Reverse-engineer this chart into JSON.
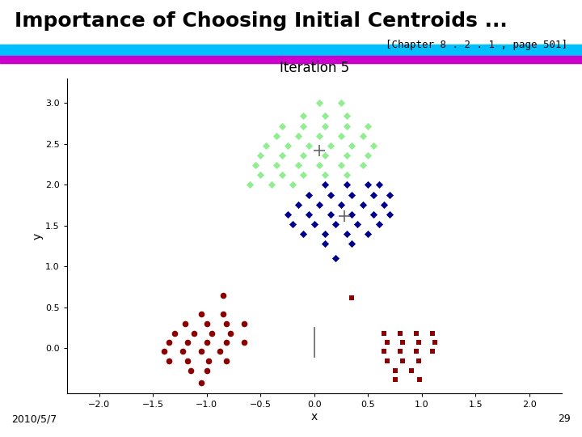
{
  "title_main": "Importance of Choosing Initial Centroids ...",
  "title_ref": "[Chapter 8 . 2 . 1 , page 501]",
  "subtitle": "Iteration 5",
  "date": "2010/5/7",
  "page_num": "29",
  "xlabel": "x",
  "ylabel": "y",
  "xlim": [
    -2.3,
    2.3
  ],
  "ylim": [
    -0.55,
    3.3
  ],
  "xticks": [
    -2,
    -1.5,
    -1,
    -0.5,
    0,
    0.5,
    1,
    1.5,
    2
  ],
  "yticks": [
    0,
    0.5,
    1,
    1.5,
    2,
    2.5,
    3
  ],
  "header_bar1_color": "#00BFFF",
  "header_bar2_color": "#CC00CC",
  "green_cluster": {
    "color": "#90EE90",
    "marker": "D",
    "size": 22,
    "points": [
      [
        0.05,
        3.0
      ],
      [
        0.25,
        3.0
      ],
      [
        -0.1,
        2.85
      ],
      [
        0.1,
        2.85
      ],
      [
        0.3,
        2.85
      ],
      [
        -0.3,
        2.72
      ],
      [
        -0.1,
        2.72
      ],
      [
        0.1,
        2.72
      ],
      [
        0.3,
        2.72
      ],
      [
        0.5,
        2.72
      ],
      [
        -0.35,
        2.6
      ],
      [
        -0.15,
        2.6
      ],
      [
        0.05,
        2.6
      ],
      [
        0.25,
        2.6
      ],
      [
        0.45,
        2.6
      ],
      [
        -0.45,
        2.48
      ],
      [
        -0.25,
        2.48
      ],
      [
        -0.05,
        2.48
      ],
      [
        0.15,
        2.48
      ],
      [
        0.35,
        2.48
      ],
      [
        0.55,
        2.48
      ],
      [
        -0.5,
        2.36
      ],
      [
        -0.3,
        2.36
      ],
      [
        -0.1,
        2.36
      ],
      [
        0.1,
        2.36
      ],
      [
        0.3,
        2.36
      ],
      [
        0.5,
        2.36
      ],
      [
        -0.55,
        2.24
      ],
      [
        -0.35,
        2.24
      ],
      [
        -0.15,
        2.24
      ],
      [
        0.05,
        2.24
      ],
      [
        0.25,
        2.24
      ],
      [
        0.45,
        2.24
      ],
      [
        -0.5,
        2.12
      ],
      [
        -0.3,
        2.12
      ],
      [
        -0.1,
        2.12
      ],
      [
        0.1,
        2.12
      ],
      [
        0.3,
        2.12
      ],
      [
        -0.6,
        2.0
      ],
      [
        -0.4,
        2.0
      ],
      [
        -0.2,
        2.0
      ]
    ],
    "centroid": [
      0.05,
      2.42
    ]
  },
  "blue_cluster": {
    "color": "#00008B",
    "marker": "D",
    "size": 22,
    "points": [
      [
        0.1,
        2.0
      ],
      [
        0.3,
        2.0
      ],
      [
        0.5,
        2.0
      ],
      [
        0.6,
        2.0
      ],
      [
        -0.05,
        1.88
      ],
      [
        0.15,
        1.88
      ],
      [
        0.35,
        1.88
      ],
      [
        0.55,
        1.88
      ],
      [
        0.7,
        1.88
      ],
      [
        -0.15,
        1.76
      ],
      [
        0.05,
        1.76
      ],
      [
        0.25,
        1.76
      ],
      [
        0.45,
        1.76
      ],
      [
        0.65,
        1.76
      ],
      [
        -0.25,
        1.64
      ],
      [
        -0.05,
        1.64
      ],
      [
        0.15,
        1.64
      ],
      [
        0.35,
        1.64
      ],
      [
        0.55,
        1.64
      ],
      [
        0.7,
        1.64
      ],
      [
        -0.2,
        1.52
      ],
      [
        0.0,
        1.52
      ],
      [
        0.2,
        1.52
      ],
      [
        0.4,
        1.52
      ],
      [
        0.6,
        1.52
      ],
      [
        -0.1,
        1.4
      ],
      [
        0.1,
        1.4
      ],
      [
        0.3,
        1.4
      ],
      [
        0.5,
        1.4
      ],
      [
        0.1,
        1.28
      ],
      [
        0.35,
        1.28
      ],
      [
        0.2,
        1.1
      ]
    ],
    "centroid": [
      0.28,
      1.62
    ]
  },
  "red_circle_cluster": {
    "color": "#8B0000",
    "marker": "o",
    "size": 30,
    "points": [
      [
        -0.85,
        0.65
      ],
      [
        -1.05,
        0.42
      ],
      [
        -0.85,
        0.42
      ],
      [
        -1.2,
        0.3
      ],
      [
        -1.0,
        0.3
      ],
      [
        -0.82,
        0.3
      ],
      [
        -0.65,
        0.3
      ],
      [
        -1.3,
        0.18
      ],
      [
        -1.12,
        0.18
      ],
      [
        -0.95,
        0.18
      ],
      [
        -0.78,
        0.18
      ],
      [
        -1.35,
        0.07
      ],
      [
        -1.18,
        0.07
      ],
      [
        -1.0,
        0.07
      ],
      [
        -0.82,
        0.07
      ],
      [
        -0.65,
        0.07
      ],
      [
        -1.4,
        -0.04
      ],
      [
        -1.22,
        -0.04
      ],
      [
        -1.05,
        -0.04
      ],
      [
        -0.88,
        -0.04
      ],
      [
        -1.35,
        -0.15
      ],
      [
        -1.18,
        -0.15
      ],
      [
        -0.98,
        -0.15
      ],
      [
        -0.82,
        -0.15
      ],
      [
        -1.15,
        -0.27
      ],
      [
        -1.0,
        -0.27
      ],
      [
        -1.05,
        -0.42
      ]
    ]
  },
  "red_square_cluster": {
    "color": "#8B0000",
    "marker": "s",
    "size": 22,
    "points": [
      [
        0.35,
        0.62
      ],
      [
        0.65,
        0.18
      ],
      [
        0.8,
        0.18
      ],
      [
        0.95,
        0.18
      ],
      [
        1.1,
        0.18
      ],
      [
        0.68,
        0.07
      ],
      [
        0.82,
        0.07
      ],
      [
        0.97,
        0.07
      ],
      [
        1.12,
        0.07
      ],
      [
        0.65,
        -0.04
      ],
      [
        0.8,
        -0.04
      ],
      [
        0.95,
        -0.04
      ],
      [
        1.1,
        -0.04
      ],
      [
        0.68,
        -0.15
      ],
      [
        0.82,
        -0.15
      ],
      [
        0.97,
        -0.15
      ],
      [
        0.75,
        -0.27
      ],
      [
        0.9,
        -0.27
      ],
      [
        0.75,
        -0.38
      ],
      [
        0.98,
        -0.38
      ]
    ],
    "centroid_x": 0.0,
    "centroid_line_ymin": -0.1,
    "centroid_line_ymax": 0.25
  },
  "centroid_color": "#666666",
  "centroid_markersize": 10,
  "centroid_linewidth": 1.2
}
